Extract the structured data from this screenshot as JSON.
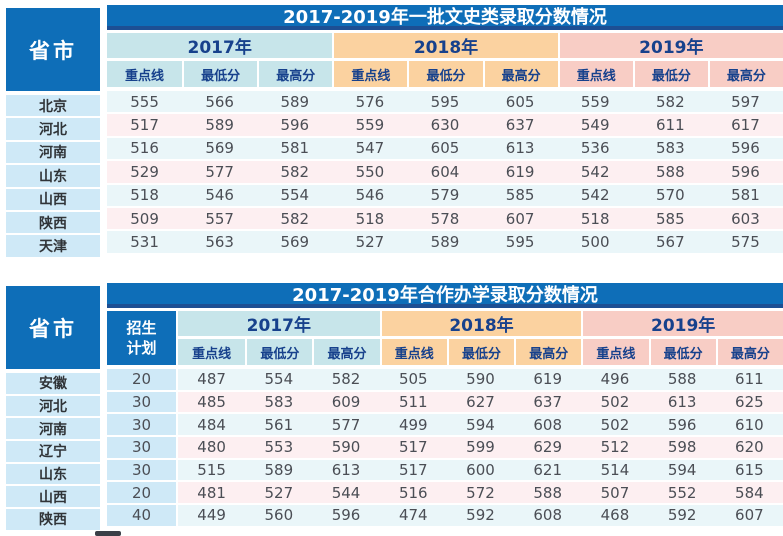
{
  "colors": {
    "banner_blue": "#0e6eb8",
    "banner_border_dark_blue": "#1d4f93",
    "header_text_navy": "#17418c",
    "group_2017_bg": "#c7e5ea",
    "group_2018_bg": "#fbd2a0",
    "group_2019_bg": "#f8cdc5",
    "row_cyan": "#eaf6f9",
    "row_pink": "#fdeff1",
    "province_cell_bg": "#cfe9f7"
  },
  "chart_data": [
    {
      "type": "table",
      "title": "2017-2019年一批文史类录取分数情况",
      "corner_header": "省市",
      "year_groups": [
        "2017年",
        "2018年",
        "2019年"
      ],
      "sub_headers": [
        "重点线",
        "最低分",
        "最高分"
      ],
      "rows": [
        {
          "province": "北京",
          "values": [
            555,
            566,
            589,
            576,
            595,
            605,
            559,
            582,
            597
          ]
        },
        {
          "province": "河北",
          "values": [
            517,
            589,
            596,
            559,
            630,
            637,
            549,
            611,
            617
          ]
        },
        {
          "province": "河南",
          "values": [
            516,
            569,
            581,
            547,
            605,
            613,
            536,
            583,
            596
          ]
        },
        {
          "province": "山东",
          "values": [
            529,
            577,
            582,
            550,
            604,
            619,
            542,
            588,
            596
          ]
        },
        {
          "province": "山西",
          "values": [
            518,
            546,
            554,
            546,
            579,
            585,
            542,
            570,
            581
          ]
        },
        {
          "province": "陕西",
          "values": [
            509,
            557,
            582,
            518,
            578,
            607,
            518,
            585,
            603
          ]
        },
        {
          "province": "天津",
          "values": [
            531,
            563,
            569,
            527,
            589,
            595,
            500,
            567,
            575
          ]
        }
      ]
    },
    {
      "type": "table",
      "title": "2017-2019年合作办学录取分数情况",
      "corner_header": "省市",
      "plan_header": "招生计划",
      "year_groups": [
        "2017年",
        "2018年",
        "2019年"
      ],
      "sub_headers": [
        "重点线",
        "最低分",
        "最高分"
      ],
      "rows": [
        {
          "province": "安徽",
          "plan": 20,
          "values": [
            487,
            554,
            582,
            505,
            590,
            619,
            496,
            588,
            611
          ]
        },
        {
          "province": "河北",
          "plan": 30,
          "values": [
            485,
            583,
            609,
            511,
            627,
            637,
            502,
            613,
            625
          ]
        },
        {
          "province": "河南",
          "plan": 30,
          "values": [
            484,
            561,
            577,
            499,
            594,
            608,
            502,
            596,
            610
          ]
        },
        {
          "province": "辽宁",
          "plan": 30,
          "values": [
            480,
            553,
            590,
            517,
            599,
            629,
            512,
            598,
            620
          ]
        },
        {
          "province": "山东",
          "plan": 30,
          "values": [
            515,
            589,
            613,
            517,
            600,
            621,
            514,
            594,
            615
          ]
        },
        {
          "province": "山西",
          "plan": 20,
          "values": [
            481,
            527,
            544,
            516,
            572,
            588,
            507,
            552,
            584
          ]
        },
        {
          "province": "陕西",
          "plan": 40,
          "values": [
            449,
            560,
            596,
            474,
            592,
            608,
            468,
            592,
            607
          ]
        }
      ]
    }
  ]
}
